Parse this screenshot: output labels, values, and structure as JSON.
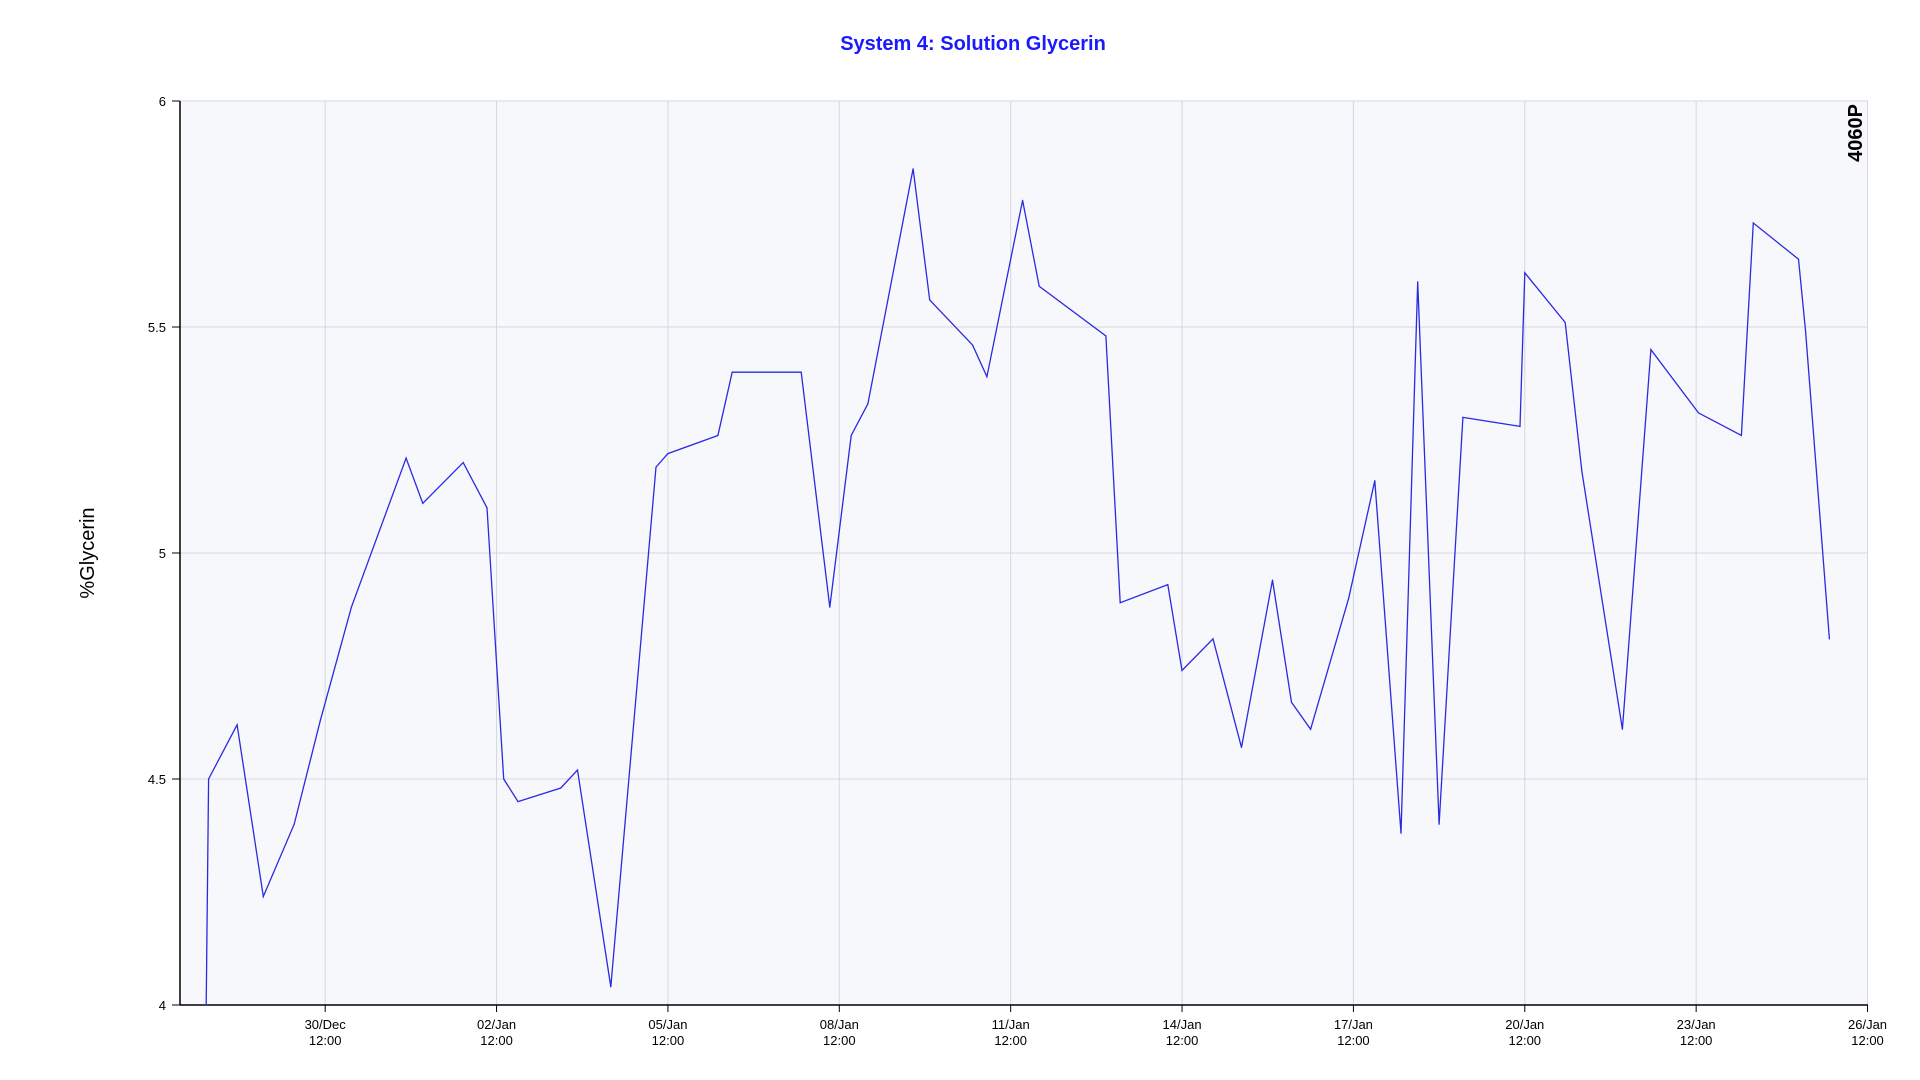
{
  "chart_data": {
    "type": "line",
    "title": "System 4: Solution Glycerin",
    "ylabel": "%Glycerin",
    "xlabel": "",
    "annotation": "4060P",
    "ylim": [
      4,
      6
    ],
    "yticks": [
      "4",
      "4.5",
      "5",
      "5.5",
      "6"
    ],
    "xlim": [
      "2018-12-27T23:00",
      "2019-01-26T12:12"
    ],
    "xticks": [
      {
        "x": "2018-12-30T12:00",
        "date": "30/Dec",
        "time": "12:00"
      },
      {
        "x": "2019-01-02T12:00",
        "date": "02/Jan",
        "time": "12:00"
      },
      {
        "x": "2019-01-05T12:00",
        "date": "05/Jan",
        "time": "12:00"
      },
      {
        "x": "2019-01-08T12:00",
        "date": "08/Jan",
        "time": "12:00"
      },
      {
        "x": "2019-01-11T12:00",
        "date": "11/Jan",
        "time": "12:00"
      },
      {
        "x": "2019-01-14T12:00",
        "date": "14/Jan",
        "time": "12:00"
      },
      {
        "x": "2019-01-17T12:00",
        "date": "17/Jan",
        "time": "12:00"
      },
      {
        "x": "2019-01-20T12:00",
        "date": "20/Jan",
        "time": "12:00"
      },
      {
        "x": "2019-01-23T12:00",
        "date": "23/Jan",
        "time": "12:00"
      },
      {
        "x": "2019-01-26T12:00",
        "date": "26/Jan",
        "time": "12:00"
      }
    ],
    "grid": true,
    "colors": {
      "line": "#2a2ae0",
      "title": "#1a1aff",
      "plot_bg": "#f7f8fc",
      "grid": "#d4d7e0"
    },
    "series": [
      {
        "x": [
          "2018-12-28T10:00",
          "2018-12-28T11:00",
          "2018-12-28T23:00",
          "2018-12-29T10:00",
          "2018-12-29T23:00",
          "2018-12-30T10:00",
          "2018-12-30T23:00",
          "2018-12-31T22:00",
          "2019-01-01T05:00",
          "2019-01-01T22:00",
          "2019-01-02T08:00",
          "2019-01-02T15:00",
          "2019-01-02T21:00",
          "2019-01-03T15:00",
          "2019-01-03T22:00",
          "2019-01-04T12:00",
          "2019-01-05T07:00",
          "2019-01-05T12:00",
          "2019-01-06T09:00",
          "2019-01-06T15:00",
          "2019-01-07T20:00",
          "2019-01-08T08:00",
          "2019-01-08T17:00",
          "2019-01-09T00:00",
          "2019-01-09T19:00",
          "2019-01-10T02:00",
          "2019-01-10T20:00",
          "2019-01-11T02:00",
          "2019-01-11T17:00",
          "2019-01-12T00:00",
          "2019-01-13T04:00",
          "2019-01-13T10:00",
          "2019-01-14T06:00",
          "2019-01-14T12:00",
          "2019-01-15T01:00",
          "2019-01-15T13:00",
          "2019-01-16T02:00",
          "2019-01-16T10:00",
          "2019-01-16T18:00",
          "2019-01-17T10:00",
          "2019-01-17T21:00",
          "2019-01-18T08:00",
          "2019-01-18T15:00",
          "2019-01-19T00:00",
          "2019-01-19T10:00",
          "2019-01-20T10:00",
          "2019-01-20T12:00",
          "2019-01-21T05:00",
          "2019-01-21T12:00",
          "2019-01-22T05:00",
          "2019-01-22T17:00",
          "2019-01-23T13:00",
          "2019-01-24T07:00",
          "2019-01-24T12:00",
          "2019-01-25T07:00",
          "2019-01-25T10:00",
          "2019-01-25T20:00"
        ],
        "values": [
          4.0,
          4.5,
          4.62,
          4.24,
          4.4,
          4.63,
          4.88,
          5.21,
          5.11,
          5.2,
          5.1,
          4.5,
          4.45,
          4.48,
          4.52,
          4.04,
          5.19,
          5.22,
          5.26,
          5.4,
          5.4,
          4.88,
          5.26,
          5.33,
          5.85,
          5.56,
          5.46,
          5.39,
          5.78,
          5.59,
          5.48,
          4.89,
          4.93,
          4.74,
          4.81,
          4.57,
          4.94,
          4.67,
          4.61,
          4.9,
          5.16,
          4.38,
          5.6,
          4.4,
          5.3,
          5.28,
          5.62,
          5.51,
          5.18,
          4.61,
          5.45,
          5.31,
          5.26,
          5.73,
          5.65,
          5.49,
          4.81
        ]
      }
    ]
  }
}
